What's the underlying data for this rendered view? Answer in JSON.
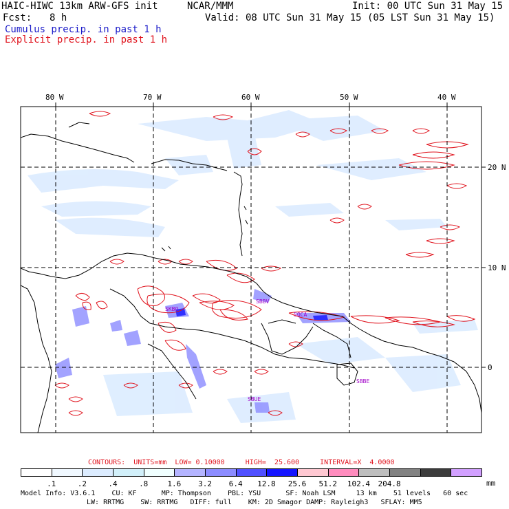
{
  "header": {
    "model_title": "HAIC-HIWC 13km ARW-GFS init",
    "org": "NCAR/MMM",
    "init": "Init: 00 UTC Sun 31 May 15",
    "fcst_label": "Fcst:",
    "fcst_value": "8 h",
    "valid": "Valid: 08 UTC Sun 31 May 15 (05 LST Sun 31 May 15)",
    "cumulus": "Cumulus precip. in past 1 h",
    "explicit": "Explicit precip. in past 1 h"
  },
  "map": {
    "lon_labels": [
      "80 W",
      "70 W",
      "60 W",
      "50 W",
      "40 W"
    ],
    "lat_labels": [
      "20 N",
      "10 N",
      "0"
    ],
    "stations": [
      "SBBV",
      "SKBO",
      "SOCA",
      "SBBE",
      "SBUE"
    ]
  },
  "legend": {
    "contours": "CONTOURS:  UNITS=mm  LOW= 0.10000     HIGH=  25.600     INTERVAL=X  4.0000",
    "labels": [
      ".1",
      ".2",
      ".4",
      ".8",
      "1.6",
      "3.2",
      "6.4",
      "12.8",
      "25.6",
      "51.2",
      "102.4",
      "204.8"
    ],
    "unit": "mm",
    "colors": [
      "#ffffff",
      "#f0f8ff",
      "#dcecff",
      "#d2f0fa",
      "#f0ffff",
      "#b4b4ff",
      "#8c8cff",
      "#5050ff",
      "#1414ff",
      "#ffc8d2",
      "#ff8cbe",
      "#bebebe",
      "#828282",
      "#3c3c3c",
      "#d2a0ff"
    ]
  },
  "info": {
    "line1": "Model Info: V3.6.1    CU: KF      MP: Thompson    PBL: YSU      SF: Noah LSM     13 km    51 levels   60 sec",
    "line2": "LW: RRTMG    SW: RRTMG   DIFF: full    KM: 2D Smagor DAMP: Rayleigh3   SFLAY: MM5"
  }
}
